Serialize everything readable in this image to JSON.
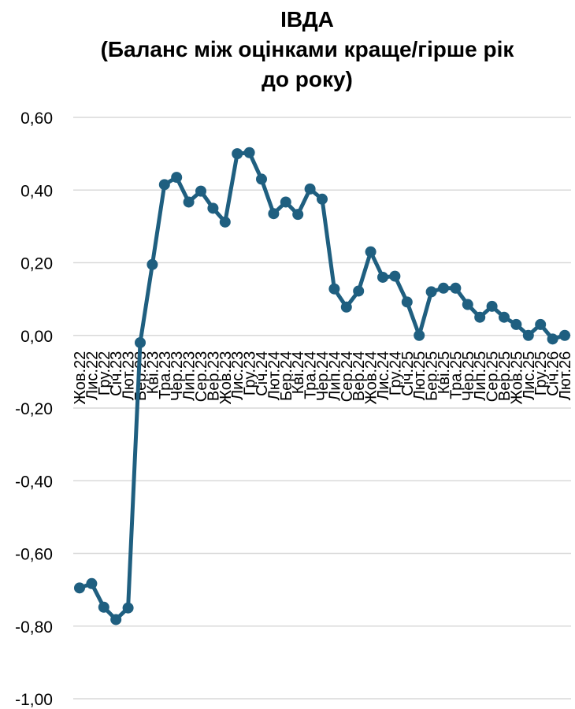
{
  "chart_data": {
    "type": "line",
    "title_lines": [
      "ІВДА",
      "(Баланс між оцінками краще/гірше рік",
      "до року)"
    ],
    "xlabel": "",
    "ylabel": "",
    "ylim": [
      -1.0,
      0.6
    ],
    "yticks": [
      "0,60",
      "0,40",
      "0,20",
      "0,00",
      "-0,20",
      "-0,40",
      "-0,60",
      "-0,80",
      "-1,00"
    ],
    "grid": true,
    "line_color": "#1f5f80",
    "grid_color": "#d9d9d9",
    "categories": [
      "Жов.22",
      "Лис.22",
      "Гру.22",
      "Січ.23",
      "Лют.23",
      "Бер.23",
      "Кві.23",
      "Тра.23",
      "Чер.23",
      "Лип.23",
      "Сер.23",
      "Вер.23",
      "Жов.23",
      "Лис.23",
      "Гру.23",
      "Січ.24",
      "Лют.24",
      "Бер.24",
      "Кві.24",
      "Тра.24",
      "Чер.24",
      "Лип.24",
      "Сер.24",
      "Вер.24",
      "Жов.24",
      "Лис.24",
      "Гру.24",
      "Січ.25",
      "Лют.25",
      "Бер.25",
      "Кві.25",
      "Тра.25",
      "Чер.25",
      "Лип.25",
      "Сер.25",
      "Вер.25",
      "Жов.25",
      "Лис.25",
      "Гру.25",
      "Січ.26",
      "Лют.26"
    ],
    "values": [
      -0.695,
      -0.683,
      -0.748,
      -0.782,
      -0.75,
      -0.02,
      0.195,
      0.415,
      0.435,
      0.367,
      0.397,
      0.35,
      0.312,
      0.5,
      0.503,
      0.43,
      0.335,
      0.367,
      0.333,
      0.403,
      0.375,
      0.128,
      0.078,
      0.122,
      0.23,
      0.16,
      0.163,
      0.092,
      0.0,
      0.12,
      0.13,
      0.13,
      0.085,
      0.05,
      0.08,
      0.05,
      0.03,
      0.0,
      0.03,
      -0.01,
      0.0
    ]
  }
}
